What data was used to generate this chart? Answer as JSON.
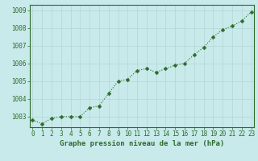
{
  "x": [
    0,
    1,
    2,
    3,
    4,
    5,
    6,
    7,
    8,
    9,
    10,
    11,
    12,
    13,
    14,
    15,
    16,
    17,
    18,
    19,
    20,
    21,
    22,
    23
  ],
  "y": [
    1002.8,
    1002.6,
    1002.9,
    1003.0,
    1003.0,
    1003.0,
    1003.5,
    1003.6,
    1004.3,
    1005.0,
    1005.1,
    1005.6,
    1005.7,
    1005.5,
    1005.7,
    1005.9,
    1006.0,
    1006.5,
    1006.9,
    1007.5,
    1007.9,
    1008.1,
    1008.4,
    1008.9
  ],
  "line_color": "#2d6a2d",
  "marker_color": "#2d6a2d",
  "bg_color": "#c8eaea",
  "grid_color": "#b0d0d0",
  "border_color": "#2d6a2d",
  "xlabel": "Graphe pression niveau de la mer (hPa)",
  "xlabel_color": "#2d6a2d",
  "tick_color": "#2d6a2d",
  "ylim": [
    1002.4,
    1009.3
  ],
  "yticks": [
    1003,
    1004,
    1005,
    1006,
    1007,
    1008,
    1009
  ],
  "xticks": [
    0,
    1,
    2,
    3,
    4,
    5,
    6,
    7,
    8,
    9,
    10,
    11,
    12,
    13,
    14,
    15,
    16,
    17,
    18,
    19,
    20,
    21,
    22,
    23
  ],
  "tick_fontsize": 5.5,
  "xlabel_fontsize": 6.5,
  "line_width": 0.8,
  "marker_size": 2.5
}
